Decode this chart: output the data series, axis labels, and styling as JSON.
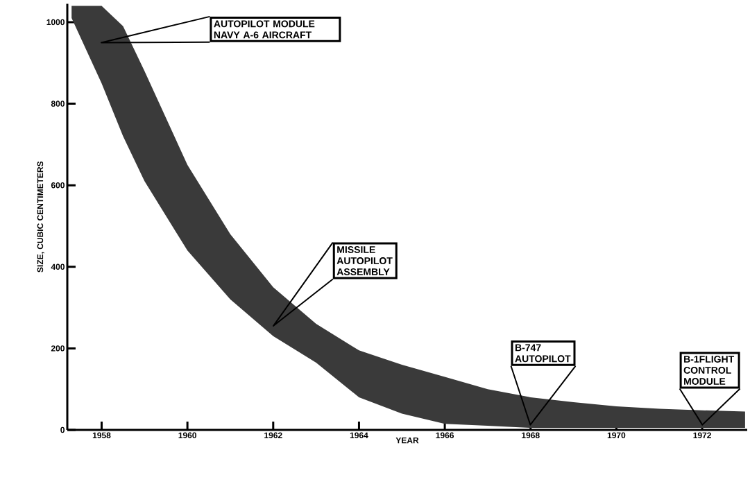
{
  "chart_data": {
    "type": "line",
    "xlabel": "YEAR",
    "ylabel": "SIZE, CUBIC CENTIMETERS",
    "x": [
      1957.3,
      1958,
      1958.5,
      1959,
      1960,
      1961,
      1962,
      1963,
      1964,
      1965,
      1966,
      1967,
      1968,
      1969,
      1970,
      1971,
      1972,
      1973
    ],
    "series": [
      {
        "color": "#3a3a3a",
        "values": [
          null,
          null,
          null,
          null,
          null,
          null,
          null,
          null,
          null,
          null,
          null,
          null,
          null,
          null,
          null,
          null,
          null,
          null
        ],
        "lower": [
          1010,
          850,
          720,
          610,
          440,
          320,
          230,
          165,
          80,
          40,
          15,
          10,
          5,
          5,
          5,
          5,
          5,
          5
        ],
        "upper": [
          1040,
          1040,
          990,
          880,
          650,
          480,
          350,
          260,
          195,
          160,
          130,
          100,
          80,
          68,
          58,
          52,
          48,
          45
        ]
      }
    ],
    "xlim": [
      1957.2,
      1973.05
    ],
    "ylim": [
      0,
      1045
    ],
    "xticks": [
      1958,
      1960,
      1962,
      1964,
      1966,
      1968,
      1970,
      1972
    ],
    "yticks": [
      0,
      200,
      400,
      600,
      800,
      1000
    ],
    "grid": false,
    "annotations": [
      "AUTOPILOT MODULE NAVY A-6 AIRCRAFT",
      "MISSILE AUTOPILOT ASSEMBLY",
      "B-747 AUTOPILOT",
      "B-1FLIGHT CONTROL MODULE"
    ]
  }
}
